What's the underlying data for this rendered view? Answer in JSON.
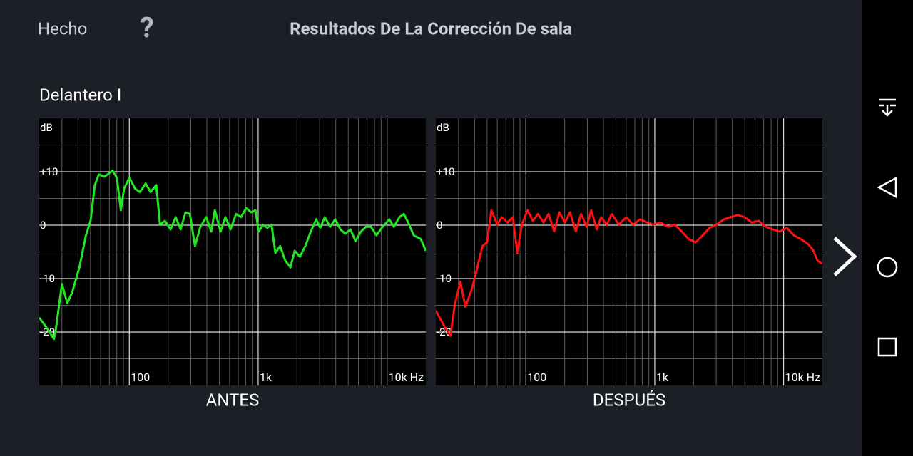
{
  "header": {
    "done": "Hecho",
    "help": "?",
    "title": "Resultados De La Corrección De sala"
  },
  "section": "Delantero I",
  "chart_data": [
    {
      "type": "line",
      "caption": "ANTES",
      "y_label": "dB",
      "log_x": true,
      "grid": true,
      "xlim": [
        20,
        20000
      ],
      "ylim": [
        -30,
        20
      ],
      "xticks": [
        {
          "value": 100,
          "label": "100"
        },
        {
          "value": 1000,
          "label": "1k"
        },
        {
          "value": 10000,
          "label": "10k Hz"
        }
      ],
      "yticks": [
        {
          "value": 10,
          "label": "+10"
        },
        0,
        -10,
        -20
      ],
      "series": [
        {
          "name": "ANTES",
          "color": "#22e622",
          "x": [
            20,
            23,
            26,
            27,
            30,
            33,
            36,
            41,
            46,
            50,
            54,
            58,
            64,
            68,
            74,
            80,
            86,
            91,
            100,
            111,
            121,
            134,
            146,
            162,
            173,
            189,
            209,
            229,
            250,
            273,
            295,
            323,
            356,
            395,
            432,
            461,
            510,
            557,
            610,
            674,
            736,
            807,
            883,
            952,
            1010,
            1090,
            1180,
            1270,
            1360,
            1480,
            1620,
            1780,
            1920,
            2110,
            2320,
            2560,
            2820,
            3030,
            3290,
            3620,
            3960,
            4350,
            4740,
            5200,
            5690,
            6270,
            6860,
            7500,
            8290,
            9110,
            10400,
            11300,
            12500,
            13500,
            14600,
            16100,
            18300,
            20000
          ],
          "values": [
            -17.3,
            -19.3,
            -21.3,
            -19.3,
            -11,
            -14.6,
            -12.6,
            -7.9,
            -1.9,
            0.8,
            7.5,
            9.5,
            9.1,
            9.5,
            10.2,
            8.9,
            2.8,
            6.8,
            8.9,
            6.8,
            6.2,
            7.8,
            6.2,
            7.5,
            0.1,
            0.8,
            -0.8,
            1.5,
            -0.8,
            2.4,
            2.1,
            -3.9,
            -0.3,
            1.5,
            -1.2,
            2.8,
            -1.2,
            1.5,
            -0.8,
            2.1,
            1.5,
            3.2,
            2.4,
            2.8,
            -1.2,
            0.1,
            -0.5,
            0.1,
            -5.2,
            -3.9,
            -6.6,
            -7.9,
            -4.8,
            -5.9,
            -3.9,
            -1.2,
            1.1,
            -0.5,
            1.5,
            -0.3,
            1.1,
            -0.8,
            -1.6,
            -0.8,
            -3.0,
            -1.2,
            -0.3,
            -0.3,
            -1.9,
            -0.5,
            1.1,
            -0.3,
            1.5,
            2.1,
            0.5,
            -1.9,
            -2.6,
            -4.8
          ]
        }
      ]
    },
    {
      "type": "line",
      "caption": "DESPUÉS",
      "y_label": "dB",
      "log_x": true,
      "grid": true,
      "xlim": [
        20,
        20000
      ],
      "ylim": [
        -30,
        20
      ],
      "xticks": [
        {
          "value": 100,
          "label": "100"
        },
        {
          "value": 1000,
          "label": "1k"
        },
        {
          "value": 10000,
          "label": "10k Hz"
        }
      ],
      "yticks": [
        {
          "value": 10,
          "label": "+10"
        },
        0,
        -10,
        -20
      ],
      "series": [
        {
          "name": "DESPUÉS",
          "color": "#ff1010",
          "x": [
            20,
            23,
            26,
            28,
            31,
            34,
            38,
            42,
            46,
            50,
            54,
            60,
            65,
            72,
            79,
            86,
            93,
            103,
            113,
            124,
            137,
            150,
            166,
            182,
            201,
            220,
            244,
            268,
            296,
            321,
            355,
            384,
            424,
            464,
            527,
            600,
            680,
            770,
            870,
            980,
            1110,
            1260,
            1430,
            1620,
            1830,
            2080,
            2350,
            2660,
            3020,
            3430,
            3880,
            4400,
            4990,
            5650,
            6400,
            7260,
            8230,
            9330,
            10600,
            12000,
            13600,
            15400,
            16900,
            18300,
            19800
          ],
          "values": [
            -16,
            -18.7,
            -20.7,
            -15,
            -10.6,
            -15.3,
            -12,
            -7.9,
            -3.9,
            -3.2,
            2.8,
            0.1,
            1.5,
            0.5,
            1.5,
            -5.2,
            0.1,
            2.8,
            0.8,
            2.1,
            0.5,
            2.1,
            -1.2,
            2.4,
            0.5,
            2.4,
            -1.2,
            2.1,
            -0.3,
            2.8,
            -0.8,
            1.5,
            0.1,
            2.1,
            0.1,
            1.5,
            0.1,
            1.1,
            0.5,
            0.1,
            0.5,
            -0.3,
            0.1,
            -1.2,
            -2.6,
            -3.2,
            -1.9,
            -0.5,
            0.1,
            1.1,
            1.5,
            1.9,
            1.5,
            0.5,
            0.8,
            -0.3,
            -0.8,
            -1.2,
            -0.5,
            -1.9,
            -2.6,
            -3.5,
            -4.6,
            -6.6,
            -7.2
          ]
        }
      ]
    }
  ]
}
